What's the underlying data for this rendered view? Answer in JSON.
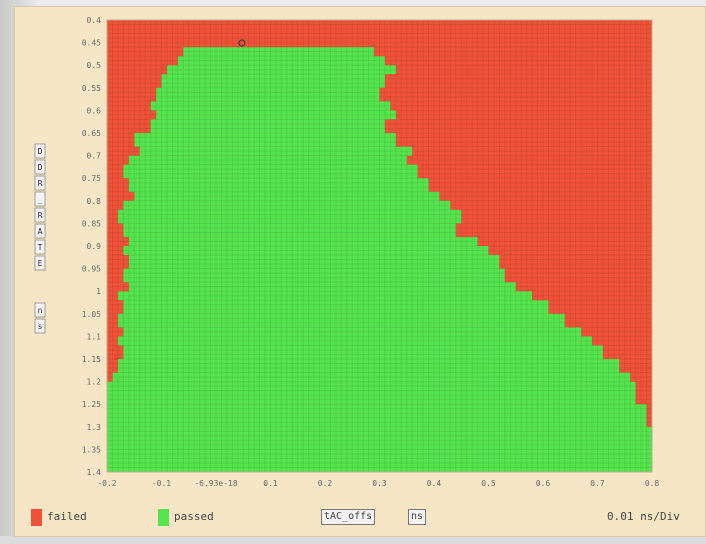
{
  "window": {
    "scale_label": "0.01 ns/Div"
  },
  "legend": {
    "failed_label": "failed",
    "passed_label": "passed",
    "failed_color": "#ef5238",
    "passed_color": "#55e34e"
  },
  "controls": {
    "axis_param_value": "tAC_offs",
    "unit_value": "ns"
  },
  "chart_data": {
    "type": "heatmap",
    "title": "",
    "xlabel": "",
    "ylabel": "DDR_RATE / ns",
    "y_axis_label_glyphs": [
      "D",
      "D",
      "R",
      "_",
      "R",
      "A",
      "T",
      "E"
    ],
    "y_unit_glyphs": [
      "n",
      "s"
    ],
    "x_tick_labels": [
      "-0.2",
      "-0.1",
      "-6.93e-18",
      "0.1",
      "0.2",
      "0.3",
      "0.4",
      "0.5",
      "0.6",
      "0.7",
      "0.8"
    ],
    "x_ticks": [
      -0.2,
      -0.1,
      0,
      0.1,
      0.2,
      0.3,
      0.4,
      0.5,
      0.6,
      0.7,
      0.8
    ],
    "y_tick_labels": [
      "0.4",
      "0.45",
      "0.5",
      "0.55",
      "0.6",
      "0.65",
      "0.7",
      "0.75",
      "0.8",
      "0.85",
      "0.9",
      "0.95",
      "1",
      "1.05",
      "1.1",
      "1.15",
      "1.2",
      "1.25",
      "1.3",
      "1.35",
      "1.4"
    ],
    "y_ticks": [
      0.4,
      0.45,
      0.5,
      0.55,
      0.6,
      0.65,
      0.7,
      0.75,
      0.8,
      0.85,
      0.9,
      0.95,
      1,
      1.05,
      1.1,
      1.15,
      1.2,
      1.25,
      1.3,
      1.35,
      1.4
    ],
    "xlim": [
      -0.2,
      0.8
    ],
    "ylim": [
      0.4,
      1.4
    ],
    "y_inverted": true,
    "grid": true,
    "classes": [
      "failed",
      "passed"
    ],
    "passed_region_boundary": {
      "y": [
        0.46,
        0.48,
        0.5,
        0.52,
        0.55,
        0.58,
        0.6,
        0.62,
        0.65,
        0.68,
        0.7,
        0.72,
        0.75,
        0.78,
        0.8,
        0.82,
        0.85,
        0.88,
        0.9,
        0.92,
        0.95,
        0.98,
        1.0,
        1.02,
        1.05,
        1.08,
        1.1,
        1.12,
        1.15,
        1.18,
        1.2,
        1.22,
        1.25,
        1.3,
        1.35,
        1.4
      ],
      "x_min": [
        -0.06,
        -0.07,
        -0.09,
        -0.1,
        -0.11,
        -0.12,
        -0.11,
        -0.12,
        -0.15,
        -0.14,
        -0.16,
        -0.17,
        -0.16,
        -0.15,
        -0.17,
        -0.18,
        -0.17,
        -0.16,
        -0.17,
        -0.16,
        -0.17,
        -0.16,
        -0.18,
        -0.17,
        -0.18,
        -0.17,
        -0.18,
        -0.17,
        -0.18,
        -0.19,
        -0.2,
        -0.2,
        -0.2,
        -0.2,
        -0.2,
        -0.2
      ],
      "x_max": [
        0.29,
        0.31,
        0.33,
        0.31,
        0.3,
        0.32,
        0.33,
        0.31,
        0.33,
        0.36,
        0.35,
        0.37,
        0.39,
        0.41,
        0.43,
        0.45,
        0.44,
        0.48,
        0.5,
        0.52,
        0.53,
        0.55,
        0.58,
        0.61,
        0.64,
        0.67,
        0.69,
        0.71,
        0.74,
        0.76,
        0.77,
        0.77,
        0.79,
        0.8,
        0.8,
        0.8
      ]
    }
  }
}
